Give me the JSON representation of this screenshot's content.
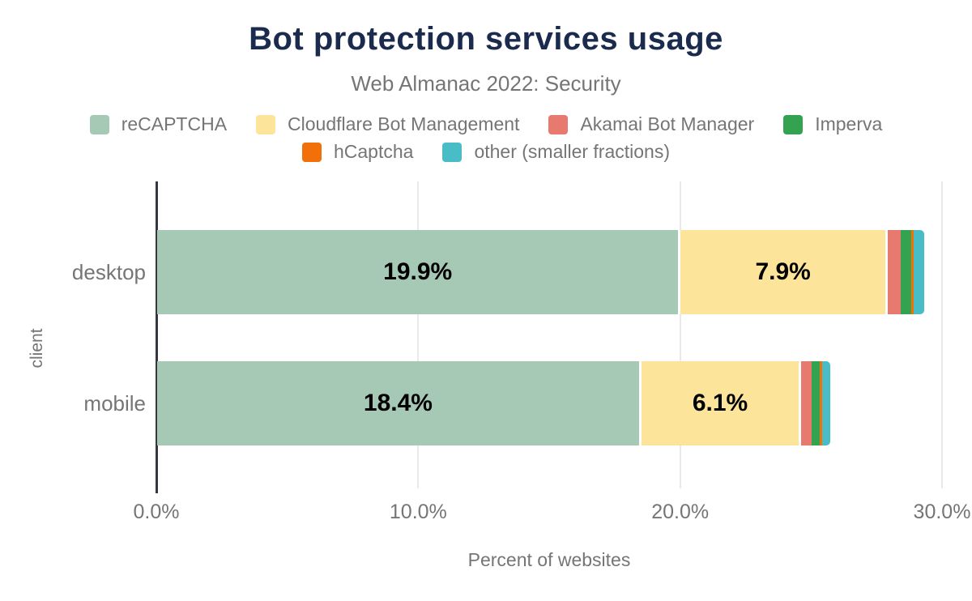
{
  "title": "Bot protection services usage",
  "subtitle": "Web Almanac 2022: Security",
  "chart_data": {
    "type": "bar",
    "orientation": "horizontal",
    "stacked": true,
    "title": "Bot protection services usage",
    "subtitle": "Web Almanac 2022: Security",
    "xlabel": "Percent of websites",
    "ylabel": "client",
    "categories": [
      "desktop",
      "mobile"
    ],
    "series": [
      {
        "name": "reCAPTCHA",
        "color": "#a5c9b4",
        "values": [
          19.9,
          18.4
        ],
        "labels": [
          "19.9%",
          "18.4%"
        ]
      },
      {
        "name": "Cloudflare Bot Management",
        "color": "#fde49b",
        "values": [
          7.9,
          6.1
        ],
        "labels": [
          "7.9%",
          "6.1%"
        ]
      },
      {
        "name": "Akamai Bot Manager",
        "color": "#e8796f",
        "values": [
          0.6,
          0.5
        ],
        "labels": [
          "",
          ""
        ]
      },
      {
        "name": "Imperva",
        "color": "#33a352",
        "values": [
          0.4,
          0.3
        ],
        "labels": [
          "",
          ""
        ]
      },
      {
        "name": "hCaptcha",
        "color": "#f1700a",
        "values": [
          0.1,
          0.1
        ],
        "labels": [
          "",
          ""
        ]
      },
      {
        "name": "other (smaller fractions)",
        "color": "#49bdc6",
        "values": [
          0.4,
          0.3
        ],
        "labels": [
          "",
          ""
        ]
      }
    ],
    "x_ticks": [
      {
        "value": 0,
        "label": "0.0%"
      },
      {
        "value": 10,
        "label": "10.0%"
      },
      {
        "value": 20,
        "label": "20.0%"
      },
      {
        "value": 30,
        "label": "30.0%"
      }
    ],
    "xlim": [
      0,
      30
    ],
    "grid": true,
    "legend_position": "top",
    "colors": {
      "title": "#1b2b4e",
      "muted_text": "#757575",
      "gridline": "#e9e9e9",
      "axis_line": "#34383c",
      "data_label": "#000000",
      "background": "#ffffff"
    }
  }
}
